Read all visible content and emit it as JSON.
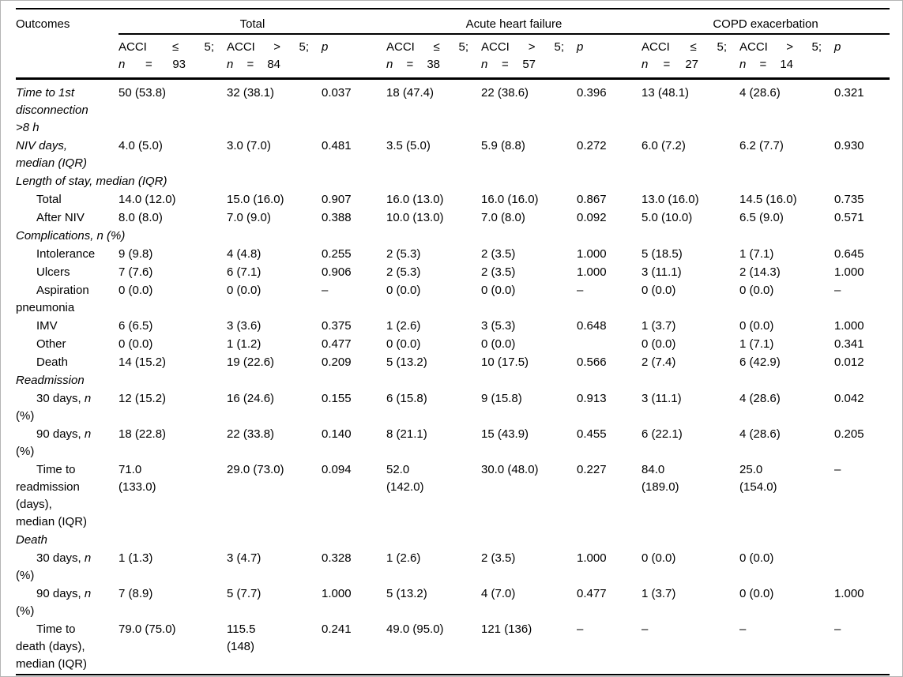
{
  "table": {
    "header_label": "Outcomes",
    "groups": [
      {
        "label": "Total",
        "cols": [
          {
            "line1": "ACCI ≤ 5;",
            "line2": "n = 93"
          },
          {
            "line1": "ACCI > 5;",
            "line2": "n = 84"
          },
          {
            "line1": "p"
          }
        ]
      },
      {
        "label": "Acute heart failure",
        "cols": [
          {
            "line1": "ACCI ≤ 5;",
            "line2": "n = 38"
          },
          {
            "line1": "ACCI > 5;",
            "line2": "n = 57"
          },
          {
            "line1": "p"
          }
        ]
      },
      {
        "label": "COPD exacerbation",
        "cols": [
          {
            "line1": "ACCI ≤ 5;",
            "line2": "n = 27"
          },
          {
            "line1": "ACCI > 5;",
            "line2": "n = 14"
          },
          {
            "line1": "p"
          }
        ]
      }
    ],
    "rows": [
      {
        "type": "data",
        "italic": true,
        "indent": false,
        "label": "Time to 1st\ndisconnection\n>8  h",
        "values": [
          "50 (53.8)",
          "32 (38.1)",
          "0.037",
          "18 (47.4)",
          "22 (38.6)",
          "0.396",
          "13 (48.1)",
          "4 (28.6)",
          "0.321"
        ]
      },
      {
        "type": "data",
        "italic": true,
        "indent": false,
        "label": "NIV days,\nmedian (IQR)",
        "values": [
          "4.0 (5.0)",
          "3.0 (7.0)",
          "0.481",
          "3.5 (5.0)",
          "5.9 (8.8)",
          "0.272",
          "6.0 (7.2)",
          "6.2 (7.7)",
          "0.930"
        ]
      },
      {
        "type": "section",
        "italic": true,
        "indent": false,
        "label": "Length of stay, median (IQR)"
      },
      {
        "type": "data",
        "italic": false,
        "indent": true,
        "label": "Total",
        "values": [
          "14.0 (12.0)",
          "15.0 (16.0)",
          "0.907",
          "16.0 (13.0)",
          "16.0 (16.0)",
          "0.867",
          "13.0 (16.0)",
          "14.5 (16.0)",
          "0.735"
        ]
      },
      {
        "type": "data",
        "italic": false,
        "indent": true,
        "label": "After NIV",
        "values": [
          "8.0 (8.0)",
          "7.0 (9.0)",
          "0.388",
          "10.0 (13.0)",
          "7.0 (8.0)",
          "0.092",
          "5.0 (10.0)",
          "6.5 (9.0)",
          "0.571"
        ]
      },
      {
        "type": "section",
        "italic": true,
        "indent": false,
        "label": "Complications, n (%)"
      },
      {
        "type": "data",
        "italic": false,
        "indent": true,
        "label": "Intolerance",
        "values": [
          "9 (9.8)",
          "4 (4.8)",
          "0.255",
          "2 (5.3)",
          "2 (3.5)",
          "1.000",
          "5 (18.5)",
          "1 (7.1)",
          "0.645"
        ]
      },
      {
        "type": "data",
        "italic": false,
        "indent": true,
        "label": "Ulcers",
        "values": [
          "7 (7.6)",
          "6 (7.1)",
          "0.906",
          "2 (5.3)",
          "2 (3.5)",
          "1.000",
          "3 (11.1)",
          "2 (14.3)",
          "1.000"
        ]
      },
      {
        "type": "data",
        "italic": false,
        "indent": true,
        "label": "Aspiration\npneumonia",
        "values": [
          "0 (0.0)",
          "0 (0.0)",
          "–",
          "0 (0.0)",
          "0 (0.0)",
          "–",
          "0 (0.0)",
          "0 (0.0)",
          "–"
        ]
      },
      {
        "type": "data",
        "italic": false,
        "indent": true,
        "label": "IMV",
        "values": [
          "6 (6.5)",
          "3 (3.6)",
          "0.375",
          "1 (2.6)",
          "3 (5.3)",
          "0.648",
          "1 (3.7)",
          "0 (0.0)",
          "1.000"
        ]
      },
      {
        "type": "data",
        "italic": false,
        "indent": true,
        "label": "Other",
        "values": [
          "0 (0.0)",
          "1 (1.2)",
          "0.477",
          "0 (0.0)",
          "0 (0.0)",
          "",
          "0 (0.0)",
          "1 (7.1)",
          "0.341"
        ]
      },
      {
        "type": "data",
        "italic": false,
        "indent": true,
        "label": "Death",
        "values": [
          "14 (15.2)",
          "19 (22.6)",
          "0.209",
          "5 (13.2)",
          "10 (17.5)",
          "0.566",
          "2 (7.4)",
          "6 (42.9)",
          "0.012"
        ]
      },
      {
        "type": "section",
        "italic": true,
        "indent": false,
        "label": "Readmission"
      },
      {
        "type": "data",
        "italic": false,
        "indent": true,
        "label": "30 days, n\n(%)",
        "values": [
          "12 (15.2)",
          "16 (24.6)",
          "0.155",
          "6 (15.8)",
          "9 (15.8)",
          "0.913",
          "3 (11.1)",
          "4 (28.6)",
          "0.042"
        ]
      },
      {
        "type": "data",
        "italic": false,
        "indent": true,
        "label": "90 days, n\n(%)",
        "values": [
          "18 (22.8)",
          "22 (33.8)",
          "0.140",
          "8 (21.1)",
          "15 (43.9)",
          "0.455",
          "6 (22.1)",
          "4 (28.6)",
          "0.205"
        ]
      },
      {
        "type": "data",
        "italic": false,
        "indent": true,
        "label": "Time to\nreadmission\n(days),\nmedian (IQR)",
        "values": [
          "71.0\n(133.0)",
          "29.0 (73.0)",
          "0.094",
          "52.0\n(142.0)",
          "30.0 (48.0)",
          "0.227",
          "84.0\n(189.0)",
          "25.0\n(154.0)",
          "–"
        ]
      },
      {
        "type": "section",
        "italic": true,
        "indent": false,
        "label": "Death"
      },
      {
        "type": "data",
        "italic": false,
        "indent": true,
        "label": "30 days, n\n(%)",
        "values": [
          "1 (1.3)",
          "3 (4.7)",
          "0.328",
          "1 (2.6)",
          "2 (3.5)",
          "1.000",
          "0 (0.0)",
          "0 (0.0)",
          ""
        ]
      },
      {
        "type": "data",
        "italic": false,
        "indent": true,
        "label": "90 days, n\n(%)",
        "values": [
          "7 (8.9)",
          "5 (7.7)",
          "1.000",
          "5 (13.2)",
          "4 (7.0)",
          "0.477",
          "1 (3.7)",
          "0 (0.0)",
          "1.000"
        ]
      },
      {
        "type": "data",
        "italic": false,
        "indent": true,
        "label": "Time to\ndeath (days),\nmedian (IQR)",
        "values": [
          "79.0 (75.0)",
          "115.5\n(148)",
          "0.241",
          "49.0 (95.0)",
          "121 (136)",
          "–",
          "–",
          "–",
          "–"
        ]
      }
    ]
  }
}
